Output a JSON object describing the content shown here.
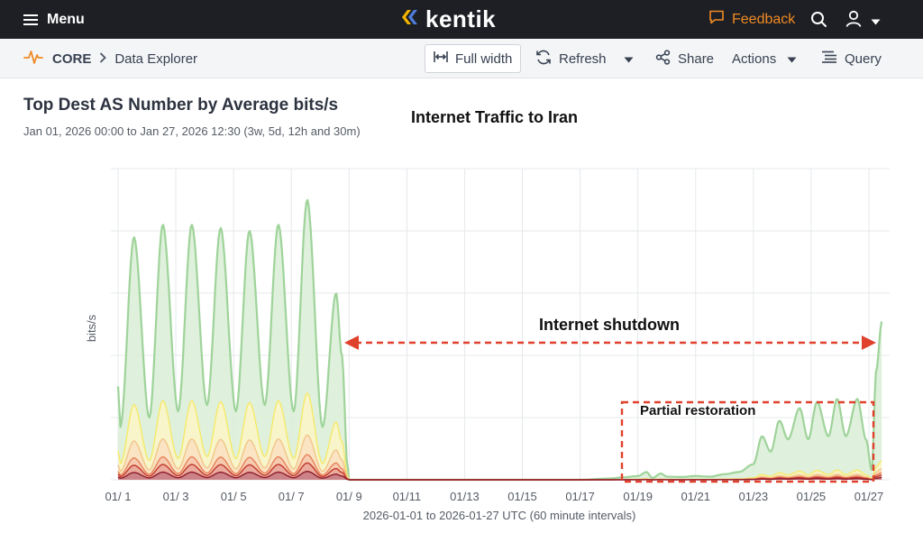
{
  "topbar": {
    "menu_label": "Menu",
    "logo_text": "kentik",
    "feedback_label": "Feedback",
    "accent_color": "#f08a24",
    "bg_color": "#1d1f24"
  },
  "breadcrumb": {
    "section": "CORE",
    "page": "Data Explorer"
  },
  "toolbar": {
    "full_width_label": "Full width",
    "refresh_label": "Refresh",
    "share_label": "Share",
    "actions_label": "Actions",
    "query_label": "Query"
  },
  "chart_header": {
    "title": "Top Dest AS Number by Average bits/s",
    "range_text": "Jan 01, 2026 00:00 to Jan 27, 2026 12:30 (3w, 5d, 12h and 30m)"
  },
  "annotations": {
    "title": "Internet Traffic to Iran",
    "shutdown_label": "Internet shutdown",
    "restoration_label": "Partial restoration",
    "annotation_color": "#e0412d"
  },
  "chart_data": {
    "type": "area",
    "stacked": true,
    "ylabel": "bits/s",
    "xlabel": "2026-01-01 to 2026-01-27 UTC (60 minute intervals)",
    "y_tick_labels_visible": false,
    "x_tick_labels": [
      "01/ 1",
      "01/ 3",
      "01/ 5",
      "01/ 7",
      "01/ 9",
      "01/11",
      "01/13",
      "01/15",
      "01/17",
      "01/19",
      "01/21",
      "01/23",
      "01/25",
      "01/27"
    ],
    "xlim": [
      0,
      26.5
    ],
    "ylim": [
      0,
      100
    ],
    "grid": true,
    "legend": "none",
    "series_colors": [
      "#8e1c2c",
      "#c0392b",
      "#e8825b",
      "#f3c58a",
      "#f6e96a",
      "#9fd39a"
    ],
    "series_fill_colors": [
      "#c77b84",
      "#e9a79b",
      "#f4c7ad",
      "#fae1c2",
      "#fbf6c5",
      "#d9efd6"
    ],
    "total_profile_x": [
      0,
      0.08,
      0.55,
      1.08,
      1.55,
      2.08,
      2.55,
      3.08,
      3.55,
      4.08,
      4.55,
      5.08,
      5.55,
      6.08,
      6.55,
      7.08,
      7.55,
      7.75,
      7.95,
      8,
      9,
      10,
      11,
      12,
      13,
      14,
      15,
      16,
      17.0,
      17.5,
      18.0,
      18.3,
      18.5,
      18.8,
      19.0,
      19.5,
      20.0,
      20.5,
      21.0,
      21.5,
      22.0,
      22.3,
      22.6,
      22.9,
      23.2,
      23.6,
      23.9,
      24.2,
      24.6,
      24.9,
      25.2,
      25.6,
      25.9,
      26.1,
      26.25,
      26.45
    ],
    "total_profile_y": [
      30,
      17,
      78,
      20,
      82,
      22,
      82,
      24,
      81,
      22,
      80,
      24,
      82,
      22,
      90,
      17,
      60,
      40,
      4,
      0,
      0,
      0,
      0,
      0,
      0,
      0,
      0,
      0,
      0.4,
      0.8,
      1.2,
      2.5,
      0.6,
      2.0,
      1.0,
      0.9,
      1.2,
      1.0,
      1.8,
      2.5,
      5.0,
      14.0,
      9.0,
      19.0,
      13.0,
      23.0,
      13.0,
      25.0,
      14.0,
      26.0,
      14.0,
      26.0,
      13.0,
      3.0,
      35.0,
      51.0
    ],
    "band_fractions": [
      0.03,
      0.06,
      0.09,
      0.16,
      0.31,
      1.0
    ],
    "yellow_fraction_shutdown_period": 0.31
  }
}
